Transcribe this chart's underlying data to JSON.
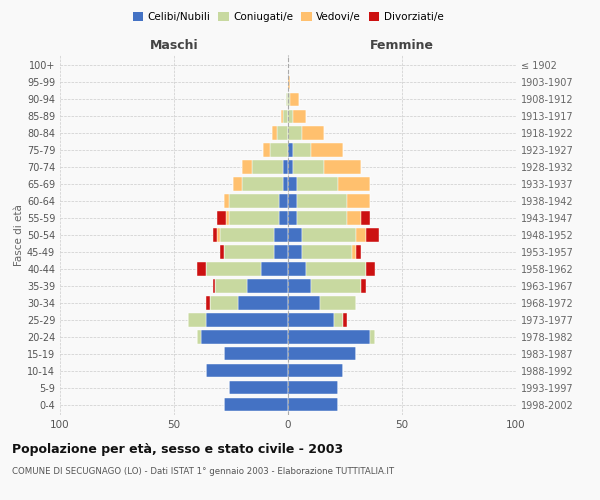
{
  "age_groups": [
    "0-4",
    "5-9",
    "10-14",
    "15-19",
    "20-24",
    "25-29",
    "30-34",
    "35-39",
    "40-44",
    "45-49",
    "50-54",
    "55-59",
    "60-64",
    "65-69",
    "70-74",
    "75-79",
    "80-84",
    "85-89",
    "90-94",
    "95-99",
    "100+"
  ],
  "birth_years": [
    "1998-2002",
    "1993-1997",
    "1988-1992",
    "1983-1987",
    "1978-1982",
    "1973-1977",
    "1968-1972",
    "1963-1967",
    "1958-1962",
    "1953-1957",
    "1948-1952",
    "1943-1947",
    "1938-1942",
    "1933-1937",
    "1928-1932",
    "1923-1927",
    "1918-1922",
    "1913-1917",
    "1908-1912",
    "1903-1907",
    "≤ 1902"
  ],
  "males": {
    "celibi": [
      28,
      26,
      36,
      28,
      38,
      36,
      22,
      18,
      12,
      6,
      6,
      4,
      4,
      2,
      2,
      0,
      0,
      0,
      0,
      0,
      0
    ],
    "coniugati": [
      0,
      0,
      0,
      0,
      2,
      8,
      12,
      14,
      24,
      22,
      24,
      22,
      22,
      18,
      14,
      8,
      5,
      2,
      1,
      0,
      0
    ],
    "vedovi": [
      0,
      0,
      0,
      0,
      0,
      0,
      0,
      0,
      0,
      0,
      1,
      1,
      2,
      4,
      4,
      3,
      2,
      1,
      0,
      0,
      0
    ],
    "divorziati": [
      0,
      0,
      0,
      0,
      0,
      0,
      2,
      1,
      4,
      2,
      2,
      4,
      0,
      0,
      0,
      0,
      0,
      0,
      0,
      0,
      0
    ]
  },
  "females": {
    "nubili": [
      22,
      22,
      24,
      30,
      36,
      20,
      14,
      10,
      8,
      6,
      6,
      4,
      4,
      4,
      2,
      2,
      0,
      0,
      0,
      0,
      0
    ],
    "coniugate": [
      0,
      0,
      0,
      0,
      2,
      4,
      16,
      22,
      26,
      22,
      24,
      22,
      22,
      18,
      14,
      8,
      6,
      2,
      1,
      0,
      0
    ],
    "vedove": [
      0,
      0,
      0,
      0,
      0,
      0,
      0,
      0,
      0,
      2,
      4,
      6,
      10,
      14,
      16,
      14,
      10,
      6,
      4,
      1,
      0
    ],
    "divorziate": [
      0,
      0,
      0,
      0,
      0,
      2,
      0,
      2,
      4,
      2,
      6,
      4,
      0,
      0,
      0,
      0,
      0,
      0,
      0,
      0,
      0
    ]
  },
  "colors": {
    "celibi": "#4472C4",
    "coniugati": "#c8d9a0",
    "vedovi": "#ffc06e",
    "divorziati": "#cc1111"
  },
  "title": "Popolazione per età, sesso e stato civile - 2003",
  "subtitle": "COMUNE DI SECUGNAGO (LO) - Dati ISTAT 1° gennaio 2003 - Elaborazione TUTTITALIA.IT",
  "ylabel_left": "Fasce di età",
  "xlabel_left": "Maschi",
  "xlabel_right": "Femmine",
  "xlim": 100,
  "background_color": "#f9f9f9",
  "plot_background": "#f9f9f9"
}
